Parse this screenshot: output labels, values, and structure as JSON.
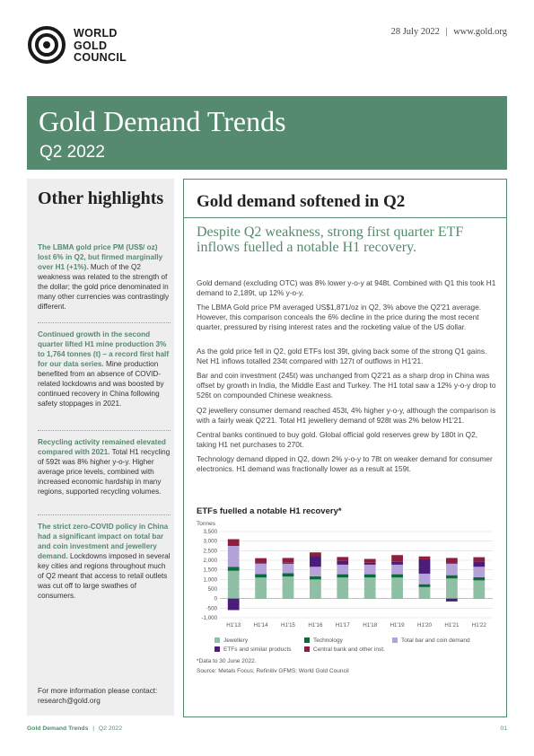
{
  "header": {
    "logo_lines": [
      "WORLD",
      "GOLD",
      "COUNCIL"
    ],
    "date": "28 July 2022",
    "separator": "|",
    "website": "www.gold.org"
  },
  "banner": {
    "title": "Gold Demand Trends",
    "subtitle": "Q2 2022"
  },
  "sidebar": {
    "title": "Other highlights",
    "items": [
      {
        "bold": "The LBMA gold price PM (US$/ oz) lost 6% in Q2, but firmed marginally over H1 (+1%).",
        "text": " Much of the Q2 weakness was related to the strength of the dollar; the gold price denominated in many other currencies was contrastingly different."
      },
      {
        "bold": "Continued growth in the second quarter lifted H1 mine production 3% to 1,764 tonnes (t) – a record first half for our data series.",
        "text": " Mine production benefited from an absence of COVID-related lockdowns and was boosted by continued recovery in China following safety stoppages in 2021."
      },
      {
        "bold": "Recycling activity remained elevated compared with 2021.",
        "text": " Total H1 recycling of 592t was 8% higher y-o-y. Higher average price levels, combined with increased economic hardship in many regions, supported recycling volumes."
      },
      {
        "bold": "The strict zero-COVID policy in China had a significant impact on total bar and coin investment and jewellery demand.",
        "text": " Lockdowns imposed in several key cities and regions throughout much of Q2 meant that access to retail outlets was cut off to large swathes of consumers."
      }
    ],
    "contact_line1": "For more information please contact:",
    "contact_line2": "research@gold.org"
  },
  "main": {
    "title": "Gold demand softened in Q2",
    "subtitle": "Despite Q2 weakness, strong first quarter ETF inflows fuelled a notable H1 recovery.",
    "paragraphs": [
      "Gold demand (excluding OTC) was 8% lower y-o-y at 948t. Combined with Q1 this took H1 demand to 2,189t, up 12% y-o-y.",
      "The LBMA Gold price PM averaged US$1,871/oz in Q2, 3% above the Q2'21 average. However, this comparison conceals the 6% decline in the price during the most recent quarter, pressured by rising interest rates and the rocketing value of the US dollar.",
      "As the gold price fell in Q2, gold ETFs lost 39t, giving back some of the strong Q1 gains. Net H1 inflows totalled 234t compared with 127t of outflows in H1'21.",
      "Bar and coin investment (245t) was unchanged from Q2'21 as a sharp drop in China was offset by growth in India, the Middle East and Turkey. The H1 total saw a 12% y-o-y drop to 526t on compounded Chinese weakness.",
      "Q2 jewellery consumer demand reached 453t, 4% higher y-o-y, although the comparison is with a fairly weak Q2'21. Total H1 jewellery demand of 928t was 2% below H1'21.",
      "Central banks continued to buy gold. Global official gold reserves grew by 180t in Q2, taking H1 net purchases to 270t.",
      "Technology demand dipped in Q2, down 2% y-o-y to 78t on weaker demand for consumer electronics. H1 demand was fractionally lower as a result at 159t."
    ]
  },
  "chart_data": {
    "type": "bar",
    "title": "ETFs fuelled a notable H1 recovery*",
    "ylabel": "Tonnes",
    "ylim": [
      -1000,
      3500
    ],
    "yticks": [
      -1000,
      -500,
      0,
      500,
      1000,
      1500,
      2000,
      2500,
      3000,
      3500
    ],
    "ytick_labels": [
      "-1,000",
      "-500",
      "0",
      "500",
      "1,000",
      "1,500",
      "2,000",
      "2,500",
      "3,000",
      "3,500"
    ],
    "categories": [
      "H1'13",
      "H1'14",
      "H1'15",
      "H1'16",
      "H1'17",
      "H1'18",
      "H1'19",
      "H1'20",
      "H1'21",
      "H1'22"
    ],
    "series": [
      {
        "name": "Jewellery",
        "color": "#8fbfa4",
        "values": [
          1450,
          1100,
          1150,
          1000,
          1100,
          1100,
          1100,
          600,
          1050,
          950
        ]
      },
      {
        "name": "Technology",
        "color": "#0b6b3a",
        "values": [
          200,
          180,
          170,
          160,
          170,
          170,
          170,
          150,
          170,
          160
        ]
      },
      {
        "name": "Total bar and coin demand",
        "color": "#b3a3d9",
        "values": [
          1100,
          550,
          500,
          500,
          500,
          500,
          500,
          550,
          600,
          550
        ]
      },
      {
        "name": "ETFs and similar products",
        "color": "#4b1d78",
        "values": [
          -600,
          50,
          50,
          550,
          200,
          100,
          150,
          750,
          -150,
          250
        ]
      },
      {
        "name": "Central bank and other inst.",
        "color": "#8f1d3c",
        "values": [
          350,
          230,
          250,
          200,
          200,
          200,
          350,
          150,
          300,
          250
        ]
      }
    ],
    "legend_position": "bottom",
    "grid": true,
    "footnote": "*Data to 30 June 2022.",
    "source": "Source: Metals Focus; Refinitiv GFMS; World Gold Council"
  },
  "footer": {
    "publication": "Gold Demand Trends",
    "separator": "|",
    "edition": "Q2 2022",
    "page": "01"
  },
  "colors": {
    "brand_green": "#558a6e",
    "sidebar_bg": "#eeeeee"
  }
}
